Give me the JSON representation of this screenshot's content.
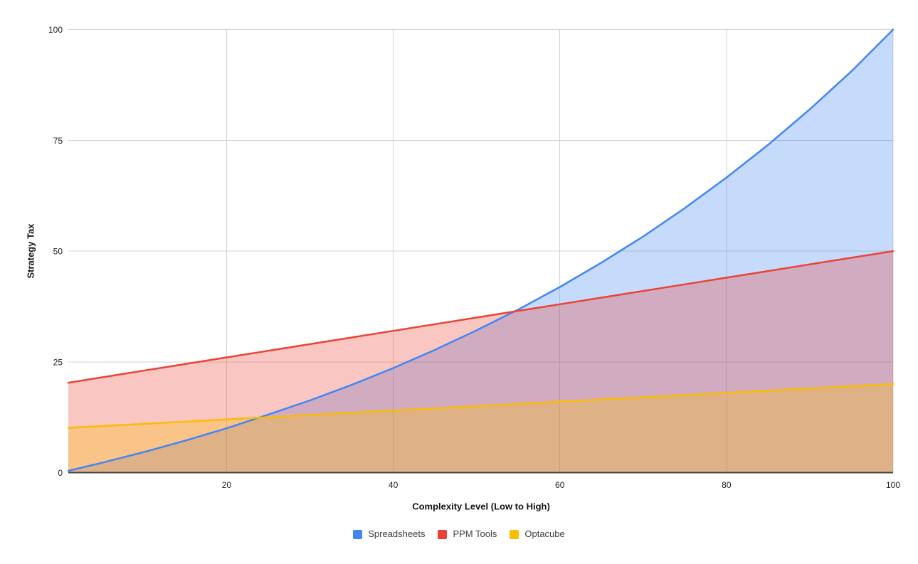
{
  "colors": {
    "background": "#ffffff",
    "gridline": "#d3d3d3",
    "baseline": "#424242",
    "tick_text": "#222222",
    "title_text": "#121212",
    "legend_text": "#3c4043",
    "series_blue": "#4285F4",
    "series_red": "#EA4335",
    "series_yellow": "#FBBC04"
  },
  "chart_data": {
    "type": "area",
    "title": "",
    "xlabel": "Complexity Level (Low to High)",
    "ylabel": "Strategy Tax",
    "xlim": [
      1,
      100
    ],
    "ylim": [
      0,
      100
    ],
    "xticks": [
      20,
      40,
      60,
      80,
      100
    ],
    "yticks": [
      0,
      25,
      50,
      75,
      100
    ],
    "grid": true,
    "legend_position": "bottom",
    "fill_opacity": 0.3,
    "line_width": 2.5,
    "x": [
      1,
      5,
      10,
      15,
      20,
      25,
      30,
      35,
      40,
      45,
      50,
      55,
      60,
      65,
      70,
      75,
      80,
      85,
      90,
      95,
      100
    ],
    "series": [
      {
        "name": "Spreadsheets",
        "color": "#4285F4",
        "values": [
          0.4,
          2.2,
          4.6,
          7.2,
          10.0,
          13.1,
          16.3,
          19.8,
          23.6,
          27.7,
          32.1,
          36.8,
          41.9,
          47.4,
          53.3,
          59.7,
          66.6,
          74.0,
          82.0,
          90.6,
          100.0
        ]
      },
      {
        "name": "PPM Tools",
        "color": "#EA4335",
        "values": [
          20.3,
          21.5,
          23.0,
          24.5,
          26.0,
          27.5,
          29.0,
          30.5,
          32.0,
          33.5,
          35.0,
          36.5,
          38.0,
          39.5,
          41.0,
          42.5,
          44.0,
          45.5,
          47.0,
          48.5,
          50.0
        ]
      },
      {
        "name": "Optacube",
        "color": "#FBBC04",
        "values": [
          10.1,
          10.5,
          11.0,
          11.5,
          12.0,
          12.5,
          13.0,
          13.5,
          14.0,
          14.5,
          15.0,
          15.5,
          16.0,
          16.5,
          17.0,
          17.5,
          18.0,
          18.5,
          19.0,
          19.5,
          20.0
        ]
      }
    ]
  }
}
